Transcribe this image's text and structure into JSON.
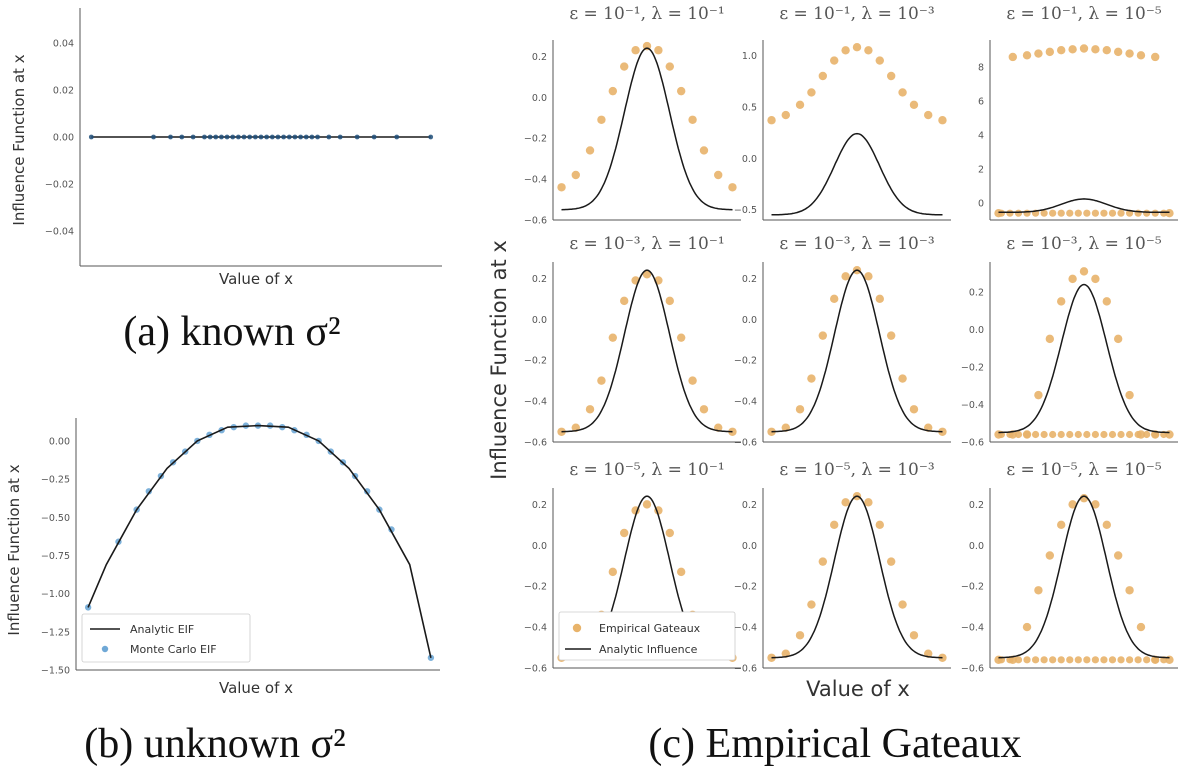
{
  "colors": {
    "analytic": "#1a1a1a",
    "monte_carlo": "#6fa8d6",
    "monte_carlo_dark": "#1f4e79",
    "gateaux": "#e8b36a",
    "axis": "#555555"
  },
  "captions": {
    "a": "(a) known σ²",
    "b": "(b) unknown σ²",
    "c": "(c) Empirical Gateaux"
  },
  "chart_data": [
    {
      "id": "a",
      "type": "scatter",
      "xlabel": "Value of x",
      "ylabel": "Influence Function at x",
      "ylim": [
        -0.055,
        0.055
      ],
      "yticks": [
        0.04,
        0.02,
        0.0,
        -0.02,
        -0.04
      ],
      "ytick_labels": [
        "0.04",
        "0.02",
        "0.00",
        "−0.02",
        "−0.04"
      ],
      "xlim": [
        -3.2,
        3.2
      ],
      "grid": false,
      "series": [
        {
          "kind": "line",
          "x": [
            -3.0,
            3.0
          ],
          "values": [
            0.0,
            0.0
          ]
        },
        {
          "kind": "points",
          "x": [
            -3.0,
            -1.9,
            -1.6,
            -1.4,
            -1.2,
            -1.0,
            -0.9,
            -0.8,
            -0.7,
            -0.6,
            -0.5,
            -0.4,
            -0.3,
            -0.2,
            -0.1,
            0.0,
            0.1,
            0.2,
            0.3,
            0.4,
            0.5,
            0.6,
            0.7,
            0.8,
            0.9,
            1.0,
            1.2,
            1.4,
            1.7,
            2.0,
            2.4,
            3.0
          ],
          "values": [
            0,
            0,
            0,
            0,
            0,
            0,
            0,
            0,
            0,
            0,
            0,
            0,
            0,
            0,
            0,
            0,
            0,
            0,
            0,
            0,
            0,
            0,
            0,
            0,
            0,
            0,
            0,
            0,
            0,
            0,
            0,
            0
          ]
        }
      ]
    },
    {
      "id": "b",
      "type": "scatter",
      "xlabel": "Value of x",
      "ylabel": "Influence Function at x",
      "ylim": [
        -1.5,
        0.15
      ],
      "yticks": [
        0.0,
        -0.25,
        -0.5,
        -0.75,
        -1.0,
        -1.25,
        -1.5
      ],
      "ytick_labels": [
        "0.00",
        "−0.25",
        "−0.50",
        "−0.75",
        "−1.00",
        "−1.25",
        "−1.50"
      ],
      "xlim": [
        -3.0,
        3.0
      ],
      "grid": false,
      "legend": {
        "position": "lower-left",
        "entries": [
          "Analytic EIF",
          "Monte Carlo EIF"
        ]
      },
      "series": [
        {
          "name": "Analytic EIF",
          "kind": "line",
          "x": [
            -2.8,
            -2.5,
            -2.0,
            -1.5,
            -1.0,
            -0.5,
            0.0,
            0.5,
            1.0,
            1.5,
            2.0,
            2.5,
            2.85
          ],
          "values": [
            -1.09,
            -0.81,
            -0.45,
            -0.18,
            0.0,
            0.09,
            0.1,
            0.09,
            0.0,
            -0.18,
            -0.45,
            -0.81,
            -1.42
          ]
        },
        {
          "name": "Monte Carlo EIF",
          "kind": "points",
          "x": [
            -2.8,
            -2.3,
            -2.0,
            -1.8,
            -1.6,
            -1.4,
            -1.2,
            -1.0,
            -0.8,
            -0.6,
            -0.4,
            -0.2,
            0.0,
            0.2,
            0.4,
            0.6,
            0.8,
            1.0,
            1.2,
            1.4,
            1.6,
            1.8,
            2.0,
            2.2,
            2.85
          ],
          "values": [
            -1.09,
            -0.66,
            -0.45,
            -0.33,
            -0.23,
            -0.14,
            -0.07,
            0.0,
            0.04,
            0.07,
            0.09,
            0.1,
            0.1,
            0.1,
            0.09,
            0.07,
            0.04,
            0.0,
            -0.07,
            -0.14,
            -0.23,
            -0.33,
            -0.45,
            -0.58,
            -1.42
          ]
        }
      ]
    },
    {
      "id": "c",
      "type": "scatter",
      "xlabel": "Value of x",
      "ylabel": "Influence Function at x",
      "legend": {
        "position": "lower-left",
        "panel": "r2c0",
        "entries": [
          "Empirical Gateaux",
          "Analytic Influence"
        ]
      },
      "x": [
        -3.0,
        -2.5,
        -2.0,
        -1.6,
        -1.2,
        -0.8,
        -0.4,
        0.0,
        0.4,
        0.8,
        1.2,
        1.6,
        2.0,
        2.5,
        3.0
      ],
      "analytic_influence": [
        -0.55,
        -0.53,
        -0.44,
        -0.29,
        -0.08,
        0.1,
        0.21,
        0.24,
        0.21,
        0.1,
        -0.08,
        -0.29,
        -0.44,
        -0.53,
        -0.55
      ],
      "panels": [
        {
          "id": "r0c0",
          "title": "ε = 10⁻¹, λ = 10⁻¹",
          "ylim": [
            -0.6,
            0.28
          ],
          "yticks": [
            0.2,
            0.0,
            -0.2,
            -0.4,
            -0.6
          ],
          "ytick_labels": [
            "0.2",
            "0.0",
            "−0.2",
            "−0.4",
            "−0.6"
          ],
          "gateaux": [
            -0.44,
            -0.38,
            -0.26,
            -0.11,
            0.03,
            0.15,
            0.23,
            0.25,
            0.23,
            0.15,
            0.03,
            -0.11,
            -0.26,
            -0.38,
            -0.44
          ]
        },
        {
          "id": "r0c1",
          "title": "ε = 10⁻¹, λ = 10⁻³",
          "ylim": [
            -0.6,
            1.15
          ],
          "yticks": [
            1.0,
            0.5,
            0.0,
            -0.5
          ],
          "ytick_labels": [
            "1.0",
            "0.5",
            "0.0",
            "−0.5"
          ],
          "gateaux": [
            0.37,
            0.42,
            0.52,
            0.64,
            0.8,
            0.95,
            1.05,
            1.08,
            1.05,
            0.95,
            0.8,
            0.64,
            0.52,
            0.42,
            0.37
          ]
        },
        {
          "id": "r0c2",
          "title": "ε = 10⁻¹, λ = 10⁻⁵",
          "ylim": [
            -1.0,
            9.6
          ],
          "yticks": [
            8,
            6,
            4,
            2,
            0
          ],
          "ytick_labels": [
            "8",
            "6",
            "4",
            "2",
            "0"
          ],
          "gateaux": [
            -0.6,
            8.6,
            8.7,
            8.8,
            8.9,
            9.0,
            9.05,
            9.1,
            9.05,
            9.0,
            8.9,
            8.8,
            8.7,
            8.6,
            -0.6
          ],
          "gateaux_baseline": -0.6
        },
        {
          "id": "r1c0",
          "title": "ε = 10⁻³, λ = 10⁻¹",
          "ylim": [
            -0.6,
            0.28
          ],
          "yticks": [
            0.2,
            0.0,
            -0.2,
            -0.4,
            -0.6
          ],
          "ytick_labels": [
            "0.2",
            "0.0",
            "−0.2",
            "−0.4",
            "−0.6"
          ],
          "gateaux": [
            -0.55,
            -0.53,
            -0.44,
            -0.3,
            -0.09,
            0.09,
            0.19,
            0.22,
            0.19,
            0.09,
            -0.09,
            -0.3,
            -0.44,
            -0.53,
            -0.55
          ]
        },
        {
          "id": "r1c1",
          "title": "ε = 10⁻³, λ = 10⁻³",
          "ylim": [
            -0.6,
            0.28
          ],
          "yticks": [
            0.2,
            0.0,
            -0.2,
            -0.4,
            -0.6
          ],
          "ytick_labels": [
            "0.2",
            "0.0",
            "−0.2",
            "−0.4",
            "−0.6"
          ],
          "gateaux": [
            -0.55,
            -0.53,
            -0.44,
            -0.29,
            -0.08,
            0.1,
            0.21,
            0.24,
            0.21,
            0.1,
            -0.08,
            -0.29,
            -0.44,
            -0.53,
            -0.55
          ]
        },
        {
          "id": "r1c2",
          "title": "ε = 10⁻³, λ = 10⁻⁵",
          "ylim": [
            -0.6,
            0.36
          ],
          "yticks": [
            0.2,
            0.0,
            -0.2,
            -0.4,
            -0.6
          ],
          "ytick_labels": [
            "0.2",
            "0.0",
            "−0.2",
            "−0.4",
            "−0.6"
          ],
          "gateaux": [
            -0.56,
            -0.56,
            -0.56,
            -0.35,
            -0.05,
            0.15,
            0.27,
            0.31,
            0.27,
            0.15,
            -0.05,
            -0.35,
            -0.56,
            -0.56,
            -0.56
          ],
          "gateaux_baseline": -0.56
        },
        {
          "id": "r2c0",
          "title": "ε = 10⁻⁵, λ = 10⁻¹",
          "ylim": [
            -0.6,
            0.28
          ],
          "yticks": [
            0.2,
            0.0,
            -0.2,
            -0.4,
            -0.6
          ],
          "ytick_labels": [
            "0.2",
            "0.0",
            "−0.2",
            "−0.4",
            "−0.6"
          ],
          "gateaux": [
            -0.55,
            -0.54,
            -0.47,
            -0.34,
            -0.13,
            0.06,
            0.17,
            0.2,
            0.17,
            0.06,
            -0.13,
            -0.34,
            -0.47,
            -0.54,
            -0.55
          ]
        },
        {
          "id": "r2c1",
          "title": "ε = 10⁻⁵, λ = 10⁻³",
          "ylim": [
            -0.6,
            0.28
          ],
          "yticks": [
            0.2,
            0.0,
            -0.2,
            -0.4,
            -0.6
          ],
          "ytick_labels": [
            "0.2",
            "0.0",
            "−0.2",
            "−0.4",
            "−0.6"
          ],
          "gateaux": [
            -0.55,
            -0.53,
            -0.44,
            -0.29,
            -0.08,
            0.1,
            0.21,
            0.24,
            0.21,
            0.1,
            -0.08,
            -0.29,
            -0.44,
            -0.53,
            -0.55
          ]
        },
        {
          "id": "r2c2",
          "title": "ε = 10⁻⁵, λ = 10⁻⁵",
          "ylim": [
            -0.6,
            0.28
          ],
          "yticks": [
            0.2,
            0.0,
            -0.2,
            -0.4,
            -0.6
          ],
          "ytick_labels": [
            "0.2",
            "0.0",
            "−0.2",
            "−0.4",
            "−0.6"
          ],
          "gateaux": [
            -0.56,
            -0.56,
            -0.4,
            -0.22,
            -0.05,
            0.1,
            0.2,
            0.23,
            0.2,
            0.1,
            -0.05,
            -0.22,
            -0.4,
            -0.56,
            -0.56
          ],
          "gateaux_baseline": -0.56
        }
      ]
    }
  ]
}
